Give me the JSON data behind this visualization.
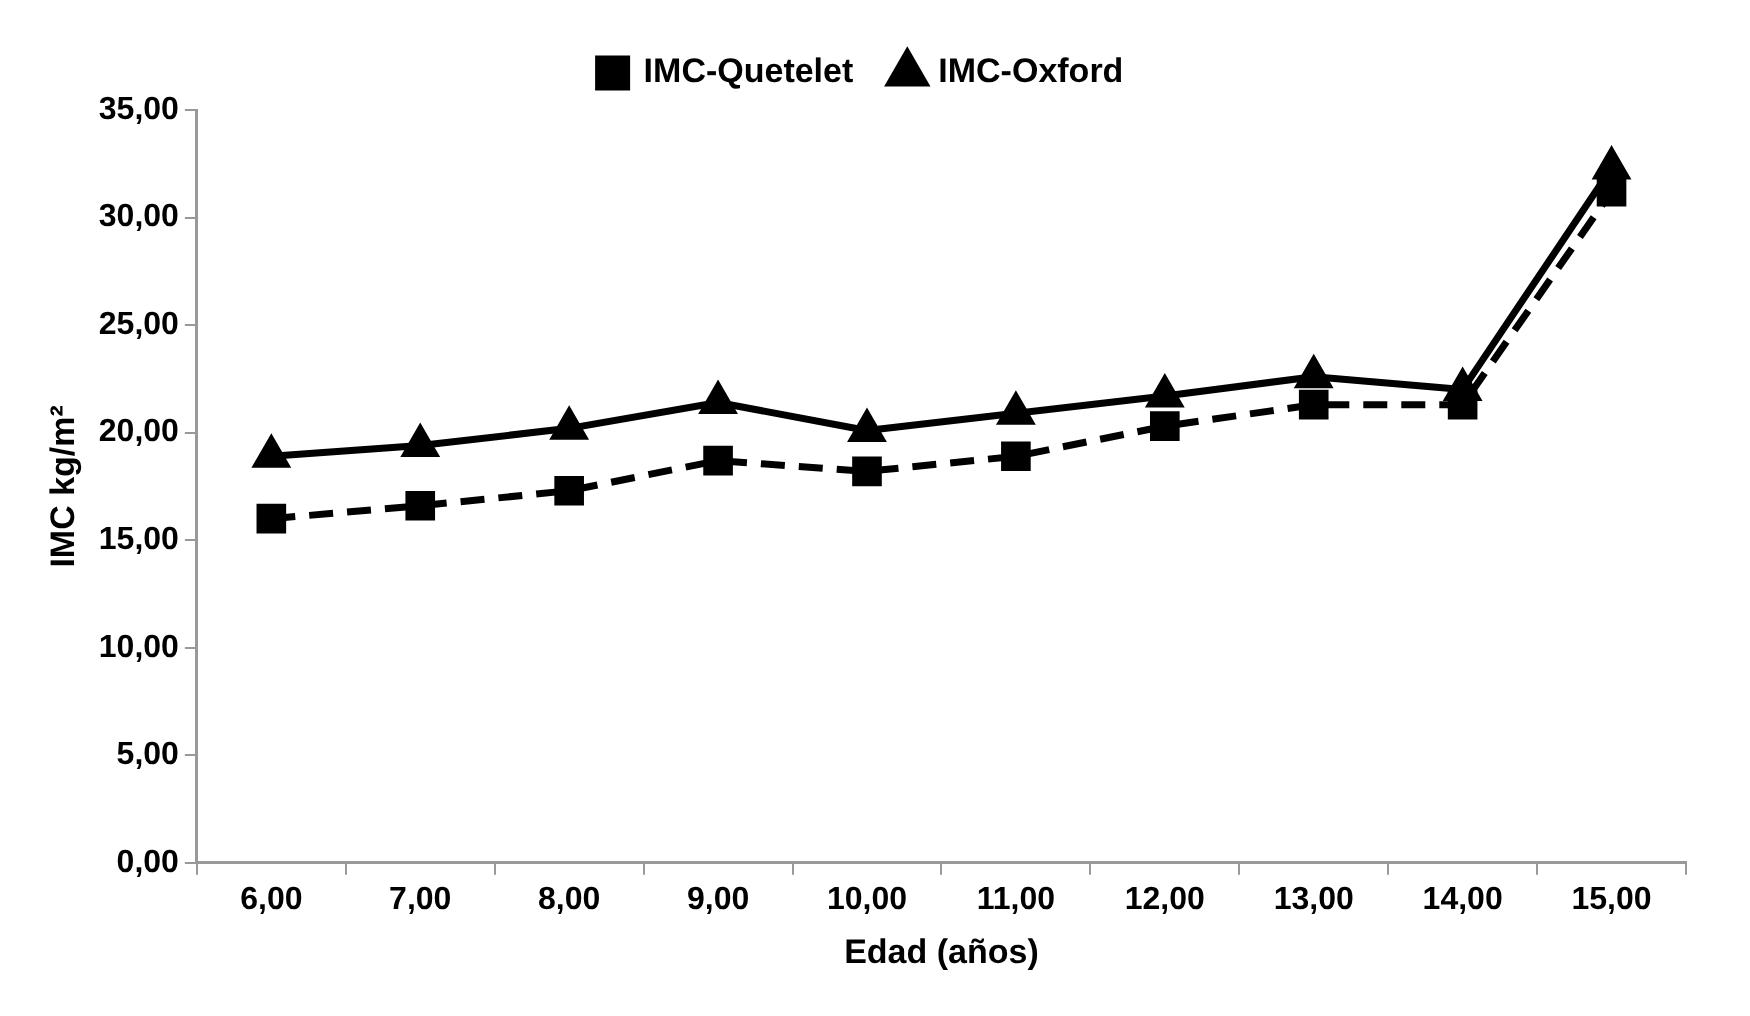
{
  "chart_data": {
    "type": "line",
    "xlabel": "Edad (años)",
    "ylabel": "IMC kg/m²",
    "categories": [
      "6,00",
      "7,00",
      "8,00",
      "9,00",
      "10,00",
      "11,00",
      "12,00",
      "13,00",
      "14,00",
      "15,00"
    ],
    "series": [
      {
        "name": "IMC-Quetelet",
        "color": "#000000",
        "marker": "square",
        "line_style": "dashed",
        "values": [
          16.0,
          16.6,
          17.3,
          18.7,
          18.2,
          18.9,
          20.3,
          21.3,
          21.3,
          31.2
        ]
      },
      {
        "name": "IMC-Oxford",
        "color": "#000000",
        "marker": "triangle",
        "line_style": "solid",
        "values": [
          18.9,
          19.4,
          20.2,
          21.4,
          20.1,
          20.9,
          21.7,
          22.6,
          22.0,
          32.3
        ]
      }
    ],
    "ylim": [
      0,
      35
    ],
    "yticks": [
      {
        "value": 0,
        "label": "0,00"
      },
      {
        "value": 5,
        "label": "5,00"
      },
      {
        "value": 10,
        "label": "10,00"
      },
      {
        "value": 15,
        "label": "15,00"
      },
      {
        "value": 20,
        "label": "20,00"
      },
      {
        "value": 25,
        "label": "25,00"
      },
      {
        "value": 30,
        "label": "30,00"
      },
      {
        "value": 35,
        "label": "35,00"
      }
    ],
    "grid": false,
    "legend": "top"
  }
}
